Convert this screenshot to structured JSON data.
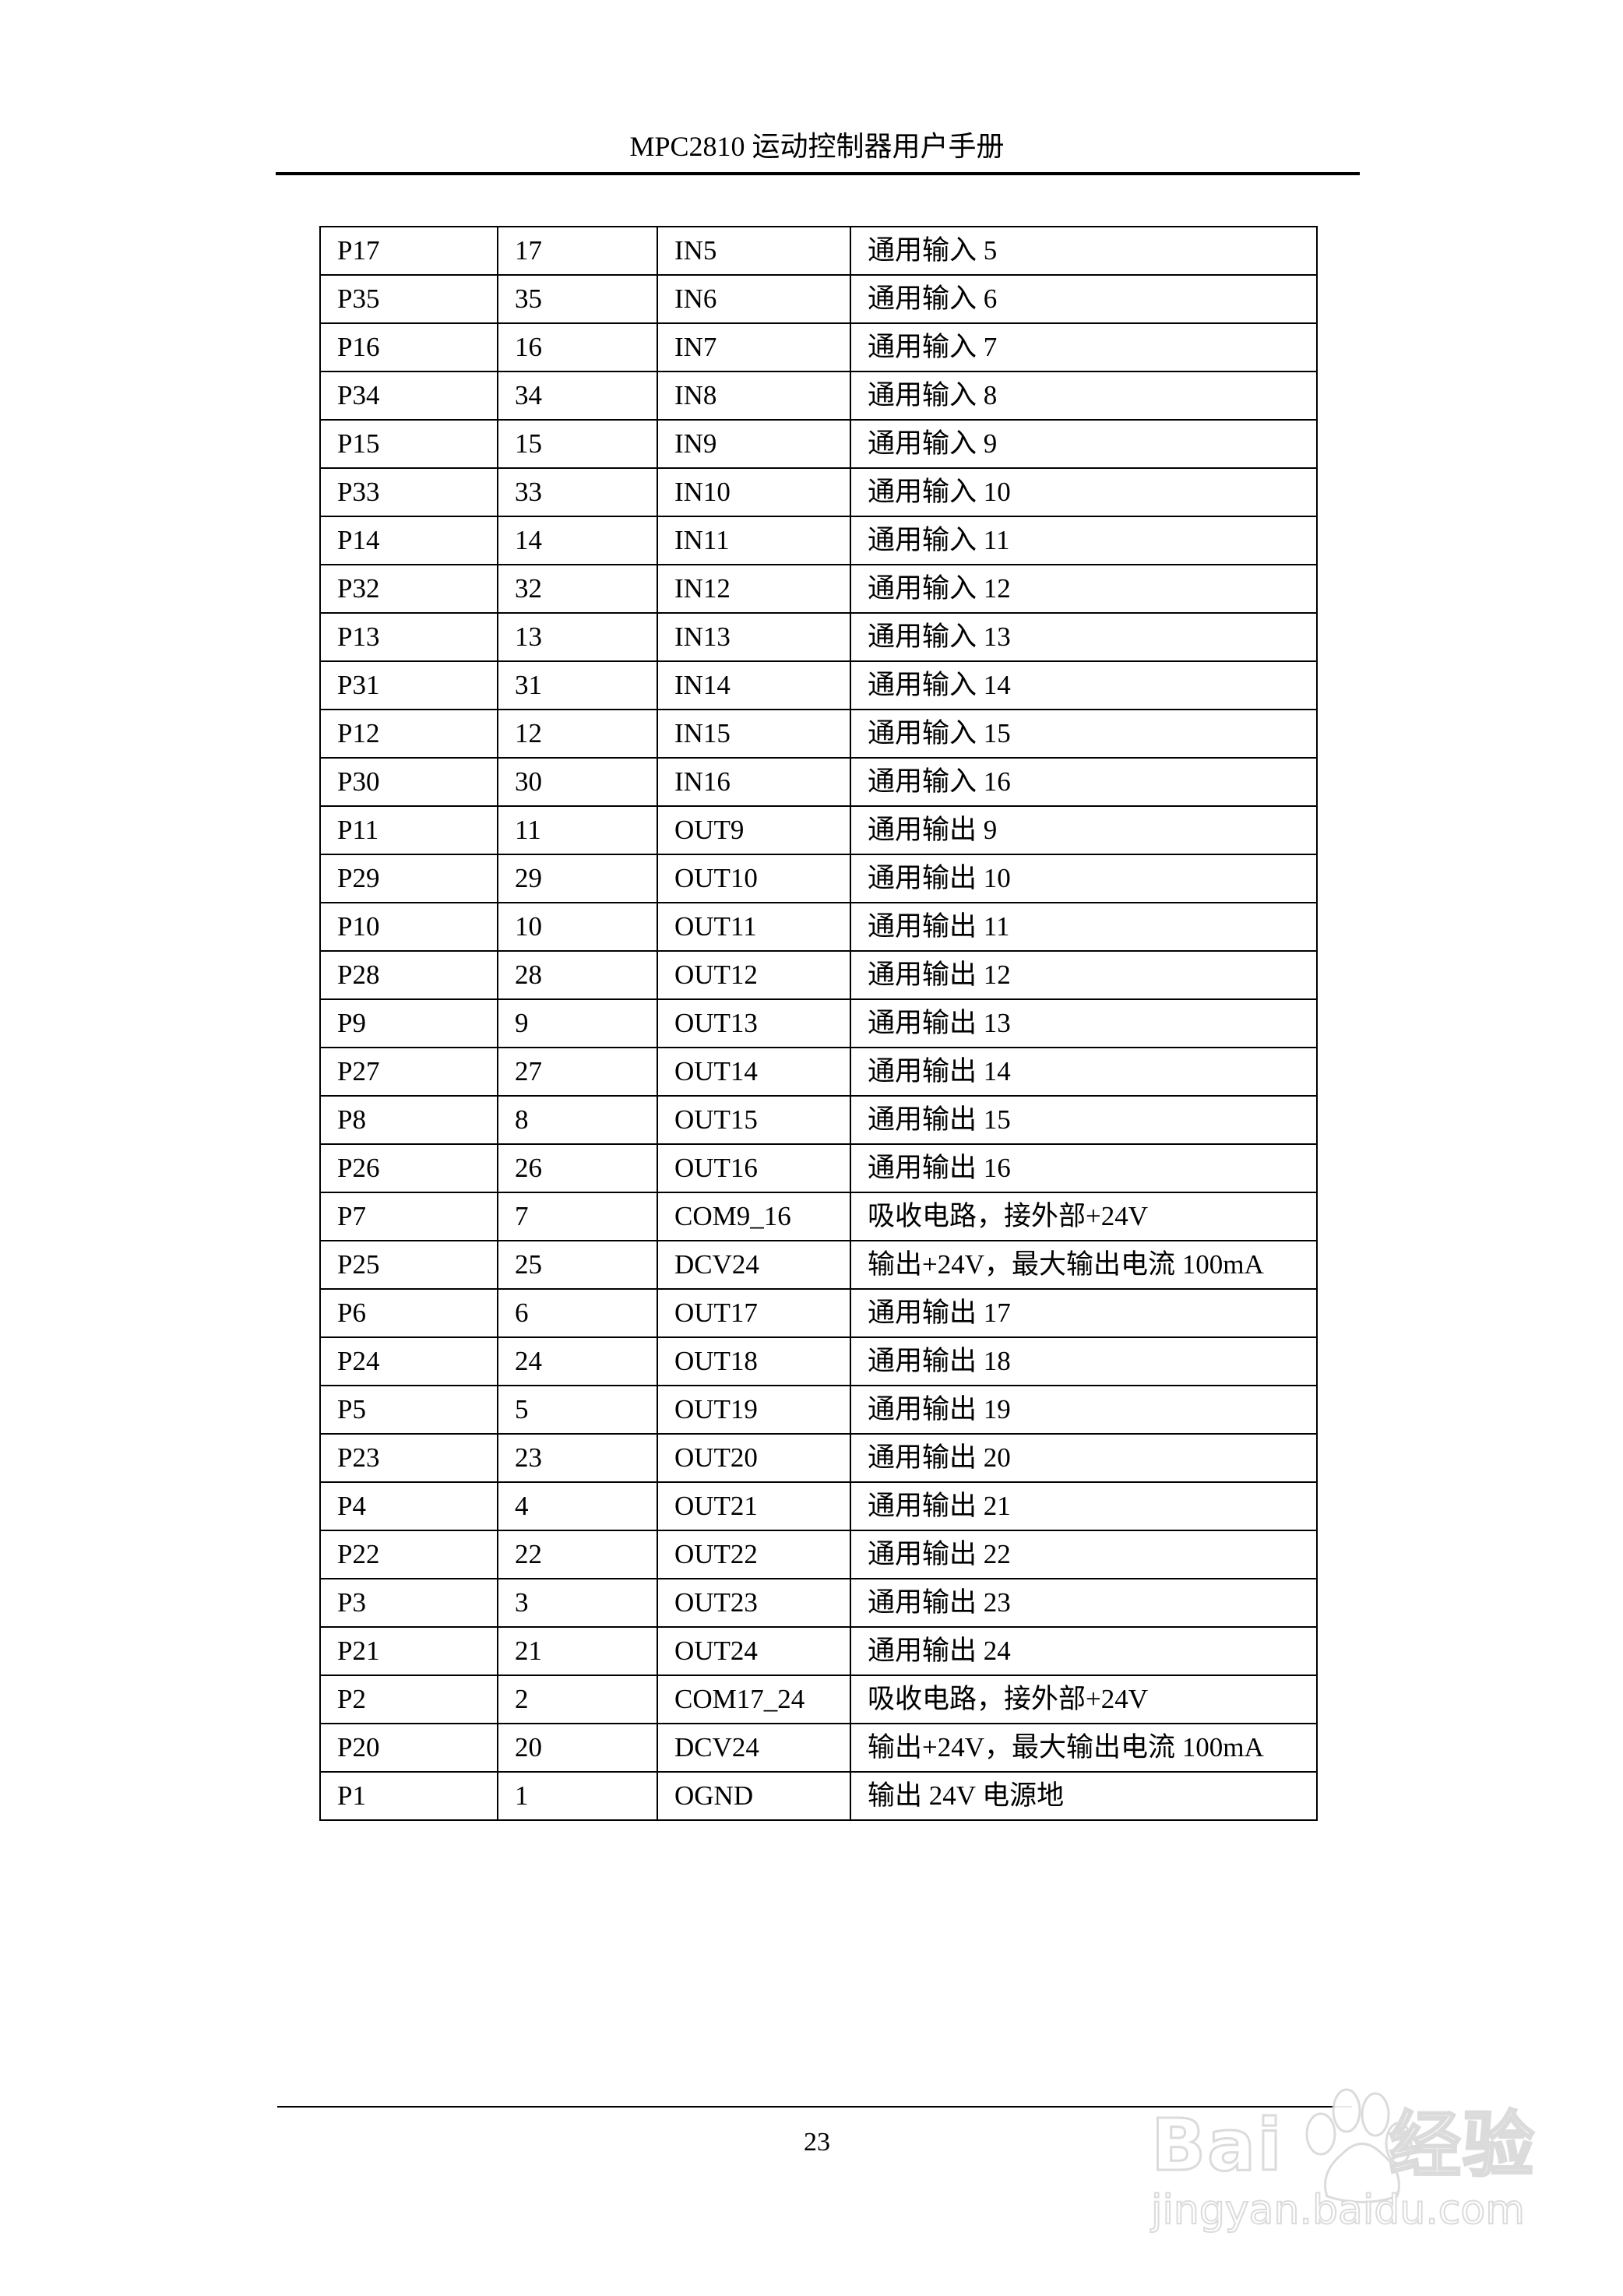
{
  "header": {
    "title": "MPC2810 运动控制器用户手册"
  },
  "table": {
    "rows": [
      [
        "P17",
        "17",
        "IN5",
        "通用输入 5"
      ],
      [
        "P35",
        "35",
        "IN6",
        "通用输入 6"
      ],
      [
        "P16",
        "16",
        "IN7",
        "通用输入 7"
      ],
      [
        "P34",
        "34",
        "IN8",
        "通用输入 8"
      ],
      [
        "P15",
        "15",
        "IN9",
        "通用输入 9"
      ],
      [
        "P33",
        "33",
        "IN10",
        "通用输入 10"
      ],
      [
        "P14",
        "14",
        "IN11",
        "通用输入 11"
      ],
      [
        "P32",
        "32",
        "IN12",
        "通用输入 12"
      ],
      [
        "P13",
        "13",
        "IN13",
        "通用输入 13"
      ],
      [
        "P31",
        "31",
        "IN14",
        "通用输入 14"
      ],
      [
        "P12",
        "12",
        "IN15",
        "通用输入 15"
      ],
      [
        "P30",
        "30",
        "IN16",
        "通用输入 16"
      ],
      [
        "P11",
        "11",
        "OUT9",
        "通用输出 9"
      ],
      [
        "P29",
        "29",
        "OUT10",
        "通用输出 10"
      ],
      [
        "P10",
        "10",
        "OUT11",
        "通用输出 11"
      ],
      [
        "P28",
        "28",
        "OUT12",
        "通用输出 12"
      ],
      [
        "P9",
        "9",
        "OUT13",
        "通用输出 13"
      ],
      [
        "P27",
        "27",
        "OUT14",
        "通用输出 14"
      ],
      [
        "P8",
        "8",
        "OUT15",
        "通用输出 15"
      ],
      [
        "P26",
        "26",
        "OUT16",
        "通用输出 16"
      ],
      [
        "P7",
        "7",
        "COM9_16",
        "吸收电路，接外部+24V"
      ],
      [
        "P25",
        "25",
        "DCV24",
        "输出+24V，最大输出电流 100mA"
      ],
      [
        "P6",
        "6",
        "OUT17",
        "通用输出 17"
      ],
      [
        "P24",
        "24",
        "OUT18",
        "通用输出 18"
      ],
      [
        "P5",
        "5",
        "OUT19",
        "通用输出 19"
      ],
      [
        "P23",
        "23",
        "OUT20",
        "通用输出 20"
      ],
      [
        "P4",
        "4",
        "OUT21",
        "通用输出 21"
      ],
      [
        "P22",
        "22",
        "OUT22",
        "通用输出 22"
      ],
      [
        "P3",
        "3",
        "OUT23",
        "通用输出 23"
      ],
      [
        "P21",
        "21",
        "OUT24",
        "通用输出 24"
      ],
      [
        "P2",
        "2",
        "COM17_24",
        "吸收电路，接外部+24V"
      ],
      [
        "P20",
        "20",
        "DCV24",
        "输出+24V，最大输出电流 100mA"
      ],
      [
        "P1",
        "1",
        "OGND",
        "输出 24V 电源地"
      ]
    ]
  },
  "footer": {
    "page_number": "23"
  },
  "watermark": {
    "brand": "Bai du 经验",
    "url": "jingyan.baidu.com",
    "icon": "paw-icon",
    "color": "#d8d8d8"
  }
}
